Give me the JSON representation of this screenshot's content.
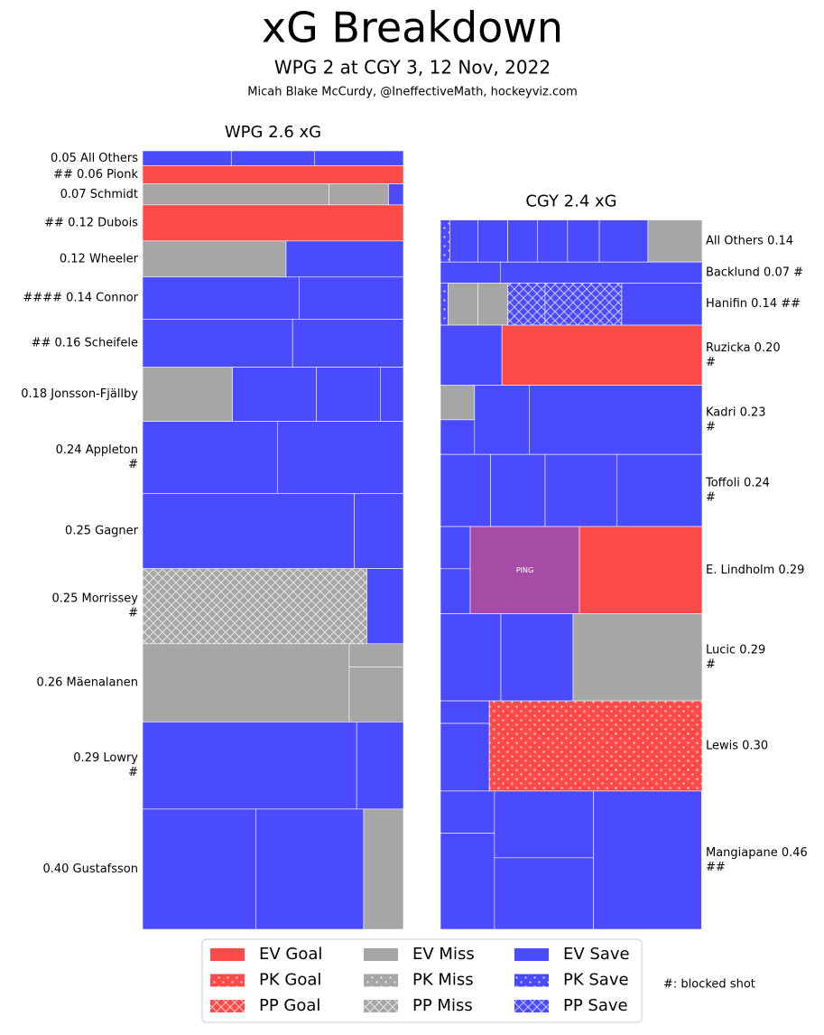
{
  "chart_data": {
    "type": "treemap",
    "title": "xG Breakdown",
    "subtitle": "WPG 2 at CGY 3, 12 Nov, 2022",
    "byline": "Micah Blake McCurdy, @IneffectiveMath, hockeyviz.com",
    "note": "#: blocked shot",
    "legend": [
      {
        "name": "EV Goal",
        "color": "#ff4a4a",
        "pattern": "solid"
      },
      {
        "name": "PK Goal",
        "color": "#ff4a4a",
        "pattern": "dots"
      },
      {
        "name": "PP Goal",
        "color": "#ff4a4a",
        "pattern": "cross"
      },
      {
        "name": "EV Miss",
        "color": "#a6a6a6",
        "pattern": "solid"
      },
      {
        "name": "PK Miss",
        "color": "#a6a6a6",
        "pattern": "dots"
      },
      {
        "name": "PP Miss",
        "color": "#a6a6a6",
        "pattern": "cross"
      },
      {
        "name": "EV Save",
        "color": "#4a4aff",
        "pattern": "solid"
      },
      {
        "name": "PK Save",
        "color": "#4a4aff",
        "pattern": "dots"
      },
      {
        "name": "PP Save",
        "color": "#4a4aff",
        "pattern": "cross"
      }
    ],
    "teams": [
      {
        "title": "WPG 2.6 xG",
        "label_side": "left",
        "players": [
          {
            "label": [
              "0.05 All Others"
            ],
            "xg": 0.05,
            "columns": [
              [
                {
                  "kind": 6,
                  "xg": 0.017
                }
              ],
              [
                {
                  "kind": 6,
                  "xg": 0.016
                }
              ],
              [
                {
                  "kind": 6,
                  "xg": 0.017
                }
              ]
            ]
          },
          {
            "label": [
              "## 0.06 Pionk"
            ],
            "xg": 0.06,
            "columns": [
              [
                {
                  "kind": 0,
                  "xg": 0.06
                }
              ]
            ]
          },
          {
            "label": [
              "0.07 Schmidt"
            ],
            "xg": 0.07,
            "columns": [
              [
                {
                  "kind": 3,
                  "xg": 0.05
                }
              ],
              [
                {
                  "kind": 3,
                  "xg": 0.016
                }
              ],
              [
                {
                  "kind": 6,
                  "xg": 0.004
                }
              ]
            ]
          },
          {
            "label": [
              "## 0.12 Dubois"
            ],
            "xg": 0.12,
            "columns": [
              [
                {
                  "kind": 0,
                  "xg": 0.12
                }
              ]
            ]
          },
          {
            "label": [
              "0.12 Wheeler"
            ],
            "xg": 0.12,
            "columns": [
              [
                {
                  "kind": 3,
                  "xg": 0.066
                }
              ],
              [
                {
                  "kind": 6,
                  "xg": 0.054
                }
              ]
            ]
          },
          {
            "label": [
              "#### 0.14 Connor"
            ],
            "xg": 0.14,
            "columns": [
              [
                {
                  "kind": 6,
                  "xg": 0.084
                }
              ],
              [
                {
                  "kind": 6,
                  "xg": 0.056
                }
              ]
            ]
          },
          {
            "label": [
              "## 0.16 Scheifele"
            ],
            "xg": 0.16,
            "columns": [
              [
                {
                  "kind": 6,
                  "xg": 0.092
                }
              ],
              [
                {
                  "kind": 6,
                  "xg": 0.068
                }
              ]
            ]
          },
          {
            "label": [
              "0.18 Jonsson-Fjällby"
            ],
            "xg": 0.18,
            "columns": [
              [
                {
                  "kind": 3,
                  "xg": 0.062
                }
              ],
              [
                {
                  "kind": 6,
                  "xg": 0.058
                }
              ],
              [
                {
                  "kind": 6,
                  "xg": 0.044
                }
              ],
              [
                {
                  "kind": 6,
                  "xg": 0.016
                }
              ]
            ]
          },
          {
            "label": [
              "0.24 Appleton",
              "#"
            ],
            "xg": 0.24,
            "columns": [
              [
                {
                  "kind": 6,
                  "xg": 0.124
                }
              ],
              [
                {
                  "kind": 6,
                  "xg": 0.116
                }
              ]
            ]
          },
          {
            "label": [
              "0.25 Gagner"
            ],
            "xg": 0.25,
            "columns": [
              [
                {
                  "kind": 6,
                  "xg": 0.203
                }
              ],
              [
                {
                  "kind": 6,
                  "xg": 0.047
                }
              ]
            ]
          },
          {
            "label": [
              "0.25 Morrissey",
              "#"
            ],
            "xg": 0.25,
            "columns": [
              [
                {
                  "kind": 5,
                  "xg": 0.215
                }
              ],
              [
                {
                  "kind": 6,
                  "xg": 0.035
                }
              ]
            ]
          },
          {
            "label": [
              "0.26 Mäenalanen"
            ],
            "xg": 0.26,
            "columns": [
              [
                {
                  "kind": 3,
                  "xg": 0.206
                }
              ],
              [
                {
                  "kind": 3,
                  "xg": 0.016
                },
                {
                  "kind": 3,
                  "xg": 0.038
                }
              ]
            ]
          },
          {
            "label": [
              "0.29 Lowry",
              "#"
            ],
            "xg": 0.29,
            "columns": [
              [
                {
                  "kind": 6,
                  "xg": 0.238
                }
              ],
              [
                {
                  "kind": 6,
                  "xg": 0.052
                }
              ]
            ]
          },
          {
            "label": [
              "0.40 Gustafsson"
            ],
            "xg": 0.4,
            "columns": [
              [
                {
                  "kind": 6,
                  "xg": 0.174
                }
              ],
              [
                {
                  "kind": 6,
                  "xg": 0.165
                }
              ],
              [
                {
                  "kind": 3,
                  "xg": 0.061
                }
              ]
            ]
          }
        ]
      },
      {
        "title": "CGY 2.4 xG",
        "label_side": "right",
        "players": [
          {
            "label": [
              "All Others 0.14"
            ],
            "xg": 0.14,
            "columns": [
              [
                {
                  "kind": 7,
                  "xg": 0.005
                }
              ],
              [
                {
                  "kind": 6,
                  "xg": 0.015
                }
              ],
              [
                {
                  "kind": 6,
                  "xg": 0.016
                }
              ],
              [
                {
                  "kind": 6,
                  "xg": 0.016
                }
              ],
              [
                {
                  "kind": 6,
                  "xg": 0.016
                }
              ],
              [
                {
                  "kind": 6,
                  "xg": 0.017
                }
              ],
              [
                {
                  "kind": 6,
                  "xg": 0.026
                }
              ],
              [
                {
                  "kind": 3,
                  "xg": 0.029
                }
              ]
            ]
          },
          {
            "label": [
              "Backlund 0.07 #"
            ],
            "xg": 0.07,
            "columns": [
              [
                {
                  "kind": 6,
                  "xg": 0.016
                }
              ],
              [
                {
                  "kind": 6,
                  "xg": 0.054
                }
              ]
            ]
          },
          {
            "label": [
              "Hanifin 0.14 ##"
            ],
            "xg": 0.14,
            "columns": [
              [
                {
                  "kind": 7,
                  "xg": 0.004
                }
              ],
              [
                {
                  "kind": 3,
                  "xg": 0.016
                }
              ],
              [
                {
                  "kind": 3,
                  "xg": 0.016
                }
              ],
              [
                {
                  "kind": 8,
                  "xg": 0.02
                }
              ],
              [
                {
                  "kind": 8,
                  "xg": 0.041
                }
              ],
              [
                {
                  "kind": 6,
                  "xg": 0.043
                }
              ]
            ]
          },
          {
            "label": [
              "Ruzicka 0.20",
              "#"
            ],
            "xg": 0.2,
            "columns": [
              [
                {
                  "kind": 6,
                  "xg": 0.047
                }
              ],
              [
                {
                  "kind": 0,
                  "xg": 0.153
                }
              ]
            ]
          },
          {
            "label": [
              "Kadri 0.23",
              "#"
            ],
            "xg": 0.23,
            "columns": [
              [
                {
                  "kind": 3,
                  "xg": 0.015
                },
                {
                  "kind": 6,
                  "xg": 0.015
                }
              ],
              [
                {
                  "kind": 6,
                  "xg": 0.048
                }
              ],
              [
                {
                  "kind": 6,
                  "xg": 0.152
                }
              ]
            ]
          },
          {
            "label": [
              "Toffoli 0.24",
              "#"
            ],
            "xg": 0.24,
            "columns": [
              [
                {
                  "kind": 6,
                  "xg": 0.046
                }
              ],
              [
                {
                  "kind": 6,
                  "xg": 0.05
                }
              ],
              [
                {
                  "kind": 6,
                  "xg": 0.066
                }
              ],
              [
                {
                  "kind": 6,
                  "xg": 0.078
                }
              ]
            ]
          },
          {
            "label": [
              "E. Lindholm 0.29"
            ],
            "xg": 0.29,
            "columns": [
              [
                {
                  "kind": 6,
                  "xg": 0.016
                },
                {
                  "kind": 6,
                  "xg": 0.017
                }
              ],
              [
                {
                  "color": "#a64ca6",
                  "label": "PING",
                  "xg": 0.121
                }
              ],
              [
                {
                  "kind": 0,
                  "xg": 0.136
                }
              ]
            ]
          },
          {
            "label": [
              "Lucic 0.29",
              "#"
            ],
            "xg": 0.29,
            "columns": [
              [
                {
                  "kind": 6,
                  "xg": 0.067
                }
              ],
              [
                {
                  "kind": 6,
                  "xg": 0.08
                }
              ],
              [
                {
                  "kind": 3,
                  "xg": 0.143
                }
              ]
            ]
          },
          {
            "label": [
              "Lewis 0.30"
            ],
            "xg": 0.3,
            "columns": [
              [
                {
                  "kind": 6,
                  "xg": 0.014
                },
                {
                  "kind": 6,
                  "xg": 0.042
                }
              ],
              [
                {
                  "kind": 1,
                  "xg": 0.244
                }
              ]
            ]
          },
          {
            "label": [
              "Mangiapane 0.46",
              "##"
            ],
            "xg": 0.46,
            "columns": [
              [
                {
                  "kind": 6,
                  "xg": 0.029
                },
                {
                  "kind": 6,
                  "xg": 0.066
                }
              ],
              [
                {
                  "kind": 6,
                  "xg": 0.084
                },
                {
                  "kind": 6,
                  "xg": 0.09
                }
              ],
              [
                {
                  "kind": 6,
                  "xg": 0.19
                }
              ]
            ]
          }
        ]
      }
    ]
  }
}
